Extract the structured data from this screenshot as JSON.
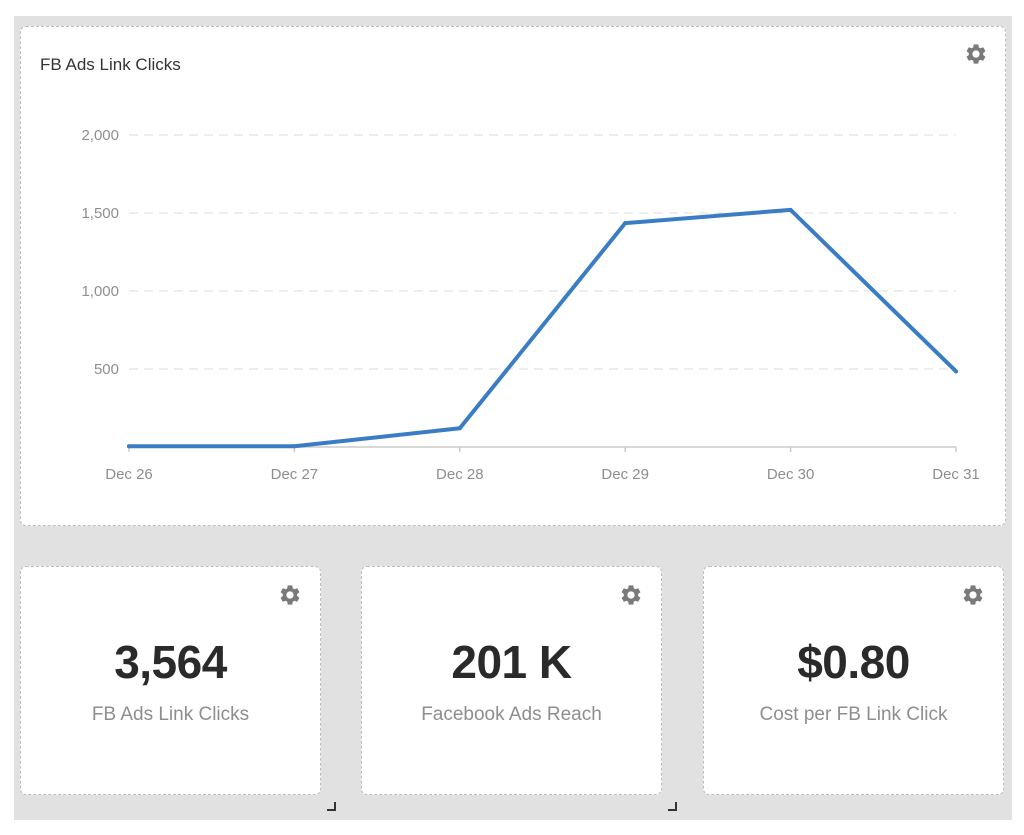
{
  "chart_card": {
    "title": "FB Ads Link Clicks",
    "settings_icon": "gear-icon"
  },
  "chart_data": {
    "type": "line",
    "x": [
      "Dec 26",
      "Dec 27",
      "Dec 28",
      "Dec 29",
      "Dec 30",
      "Dec 31"
    ],
    "series": [
      {
        "values": [
          5,
          5,
          120,
          1435,
          1520,
          485
        ]
      }
    ],
    "yticks": [
      500,
      1000,
      1500,
      2000
    ],
    "ytick_labels": [
      "500",
      "1,000",
      "1,500",
      "2,000"
    ],
    "ylim": [
      0,
      2000
    ],
    "grid": true,
    "legend": "none",
    "line_color": "#3b7dc4"
  },
  "metrics": [
    {
      "value": "3,564",
      "label": "FB Ads Link Clicks"
    },
    {
      "value": "201 K",
      "label": "Facebook Ads Reach"
    },
    {
      "value": "$0.80",
      "label": "Cost per FB Link Click"
    }
  ],
  "colors": {
    "background": "#e1e1e1",
    "card": "#ffffff",
    "gear": "#7a7a7a",
    "line": "#3b7dc4",
    "muted_text": "#8e8e8e",
    "value_text": "#2a2a2a"
  }
}
